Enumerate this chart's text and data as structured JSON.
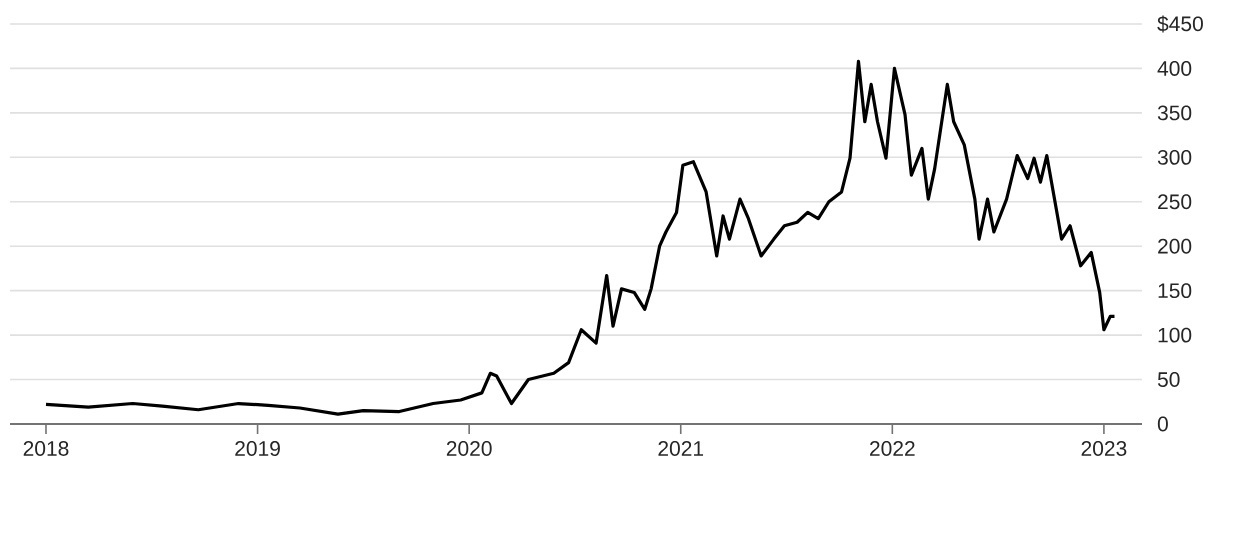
{
  "chart_data": {
    "type": "line",
    "x": [
      2018.0,
      2018.2,
      2018.41,
      2018.55,
      2018.72,
      2018.91,
      2019.05,
      2019.2,
      2019.38,
      2019.5,
      2019.67,
      2019.83,
      2019.96,
      2020.06,
      2020.1,
      2020.13,
      2020.2,
      2020.28,
      2020.4,
      2020.47,
      2020.53,
      2020.6,
      2020.65,
      2020.68,
      2020.72,
      2020.78,
      2020.83,
      2020.86,
      2020.9,
      2020.93,
      2020.98,
      2021.01,
      2021.06,
      2021.12,
      2021.17,
      2021.2,
      2021.23,
      2021.28,
      2021.32,
      2021.38,
      2021.44,
      2021.49,
      2021.55,
      2021.6,
      2021.65,
      2021.7,
      2021.76,
      2021.8,
      2021.84,
      2021.87,
      2021.9,
      2021.93,
      2021.97,
      2022.01,
      2022.06,
      2022.09,
      2022.14,
      2022.17,
      2022.2,
      2022.26,
      2022.29,
      2022.34,
      2022.39,
      2022.41,
      2022.45,
      2022.48,
      2022.54,
      2022.59,
      2022.64,
      2022.67,
      2022.7,
      2022.73,
      2022.8,
      2022.84,
      2022.89,
      2022.94,
      2022.98,
      2023.0,
      2023.03,
      2023.05
    ],
    "series": [
      {
        "color": "#000000",
        "values": [
          22,
          19,
          23,
          20,
          16,
          23,
          21,
          18,
          11,
          15,
          14,
          23,
          27,
          35,
          57,
          54,
          23,
          50,
          57,
          69,
          106,
          91,
          167,
          110,
          152,
          148,
          129,
          152,
          200,
          216,
          238,
          291,
          295,
          261,
          189,
          234,
          208,
          253,
          231,
          189,
          208,
          223,
          227,
          238,
          231,
          250,
          261,
          299,
          408,
          340,
          382,
          340,
          299,
          400,
          348,
          280,
          310,
          253,
          287,
          382,
          340,
          314,
          253,
          208,
          253,
          216,
          253,
          302,
          276,
          299,
          272,
          302,
          208,
          223,
          178,
          193,
          148,
          106,
          121,
          121
        ]
      }
    ],
    "xlim": [
      2017.83,
      2023.18
    ],
    "xticks": [
      2018,
      2019,
      2020,
      2021,
      2022,
      2023
    ],
    "ylim": [
      0,
      450
    ],
    "yticks": [
      0,
      50,
      100,
      150,
      200,
      250,
      300,
      350,
      400,
      {
        "value": 450,
        "label": "$450"
      }
    ],
    "grid": "y",
    "marker": "none",
    "line_style": "solid"
  }
}
